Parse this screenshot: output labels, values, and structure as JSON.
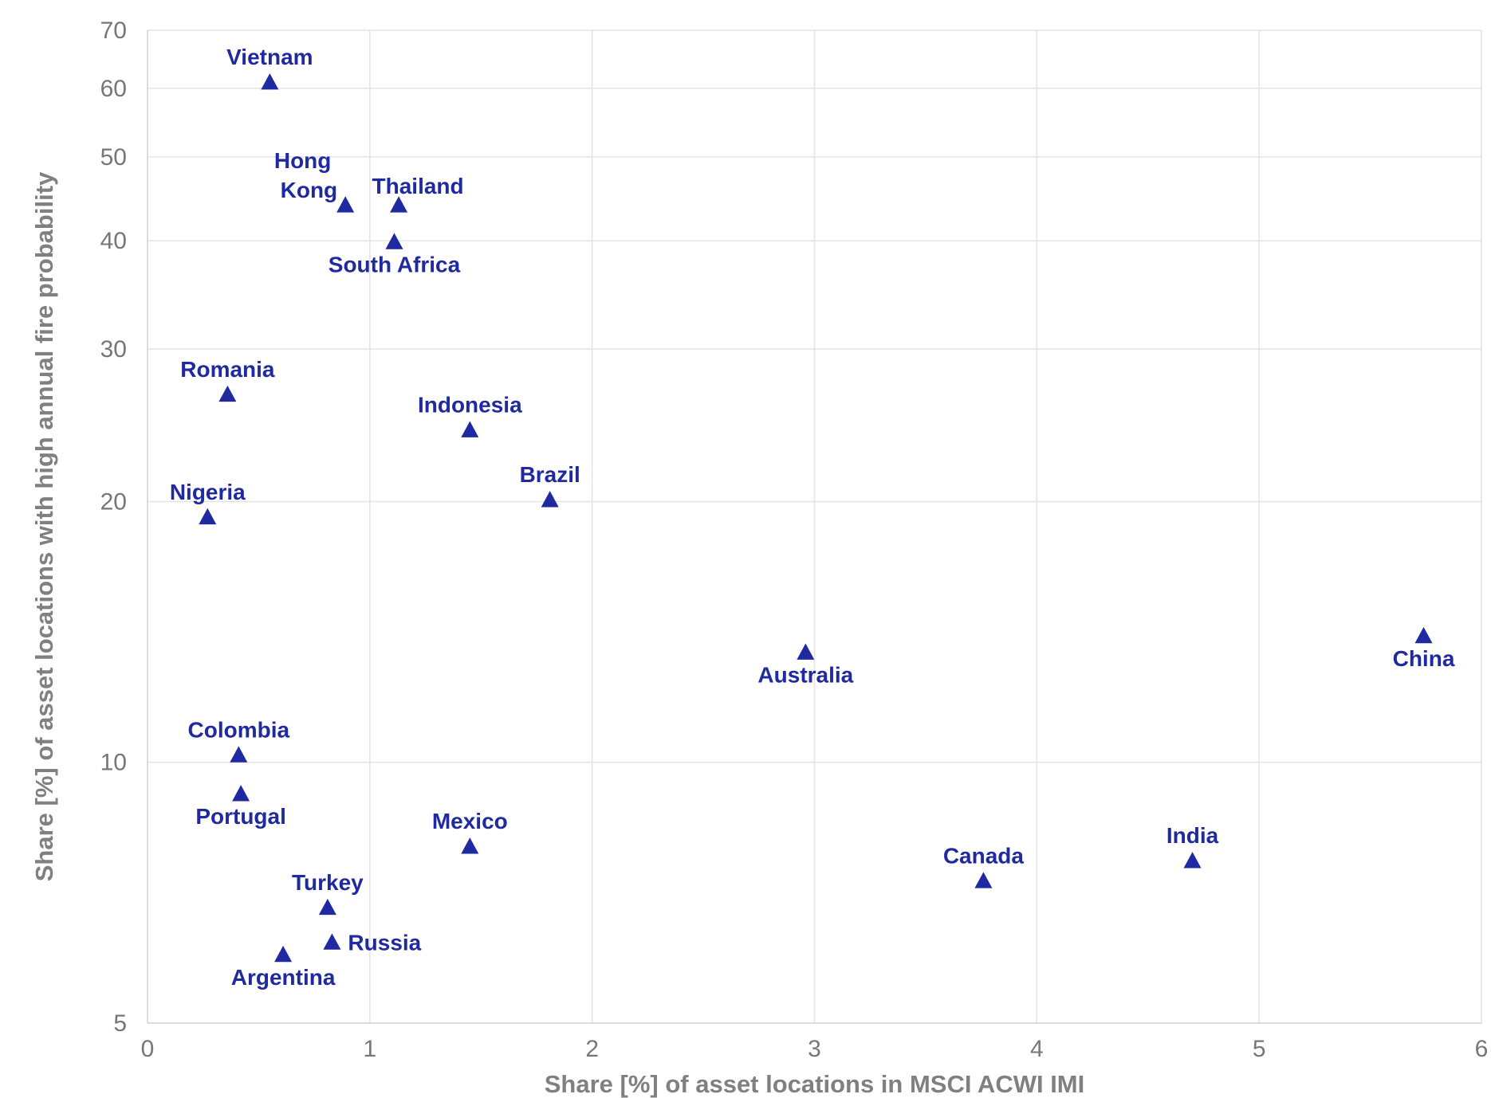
{
  "chart_data": {
    "type": "scatter",
    "title": "",
    "xlabel": "Share [%] of asset locations in MSCI ACWI IMI",
    "ylabel": "Share [%] of asset locations with high annual fire probability",
    "xlim": [
      0,
      6
    ],
    "ylim": [
      5,
      70
    ],
    "yscale": "log",
    "x_ticks": [
      0,
      1,
      2,
      3,
      4,
      5,
      6
    ],
    "y_ticks": [
      5,
      10,
      20,
      30,
      40,
      50,
      60,
      70
    ],
    "marker": "triangle",
    "color": "#1f2aa0",
    "points": [
      {
        "label": "Vietnam",
        "x": 0.55,
        "y": 61.0,
        "label_pos": "top"
      },
      {
        "label": "Hong Kong",
        "x": 0.89,
        "y": 44.0,
        "label_pos": "left-two-line"
      },
      {
        "label": "Thailand",
        "x": 1.13,
        "y": 44.0,
        "label_pos": "top-right"
      },
      {
        "label": "South Africa",
        "x": 1.11,
        "y": 39.9,
        "label_pos": "bottom"
      },
      {
        "label": "Romania",
        "x": 0.36,
        "y": 26.6,
        "label_pos": "top"
      },
      {
        "label": "Indonesia",
        "x": 1.45,
        "y": 24.2,
        "label_pos": "top"
      },
      {
        "label": "Brazil",
        "x": 1.81,
        "y": 20.1,
        "label_pos": "top"
      },
      {
        "label": "Nigeria",
        "x": 0.27,
        "y": 19.2,
        "label_pos": "top"
      },
      {
        "label": "Australia",
        "x": 2.96,
        "y": 13.4,
        "label_pos": "bottom"
      },
      {
        "label": "China",
        "x": 5.74,
        "y": 14.0,
        "label_pos": "bottom"
      },
      {
        "label": "Colombia",
        "x": 0.41,
        "y": 10.2,
        "label_pos": "top"
      },
      {
        "label": "Portugal",
        "x": 0.42,
        "y": 9.2,
        "label_pos": "bottom"
      },
      {
        "label": "Mexico",
        "x": 1.45,
        "y": 8.0,
        "label_pos": "top"
      },
      {
        "label": "India",
        "x": 4.7,
        "y": 7.7,
        "label_pos": "top"
      },
      {
        "label": "Canada",
        "x": 3.76,
        "y": 7.3,
        "label_pos": "top"
      },
      {
        "label": "Turkey",
        "x": 0.81,
        "y": 6.8,
        "label_pos": "top"
      },
      {
        "label": "Russia",
        "x": 0.83,
        "y": 6.2,
        "label_pos": "right"
      },
      {
        "label": "Argentina",
        "x": 0.61,
        "y": 6.0,
        "label_pos": "bottom"
      }
    ]
  }
}
